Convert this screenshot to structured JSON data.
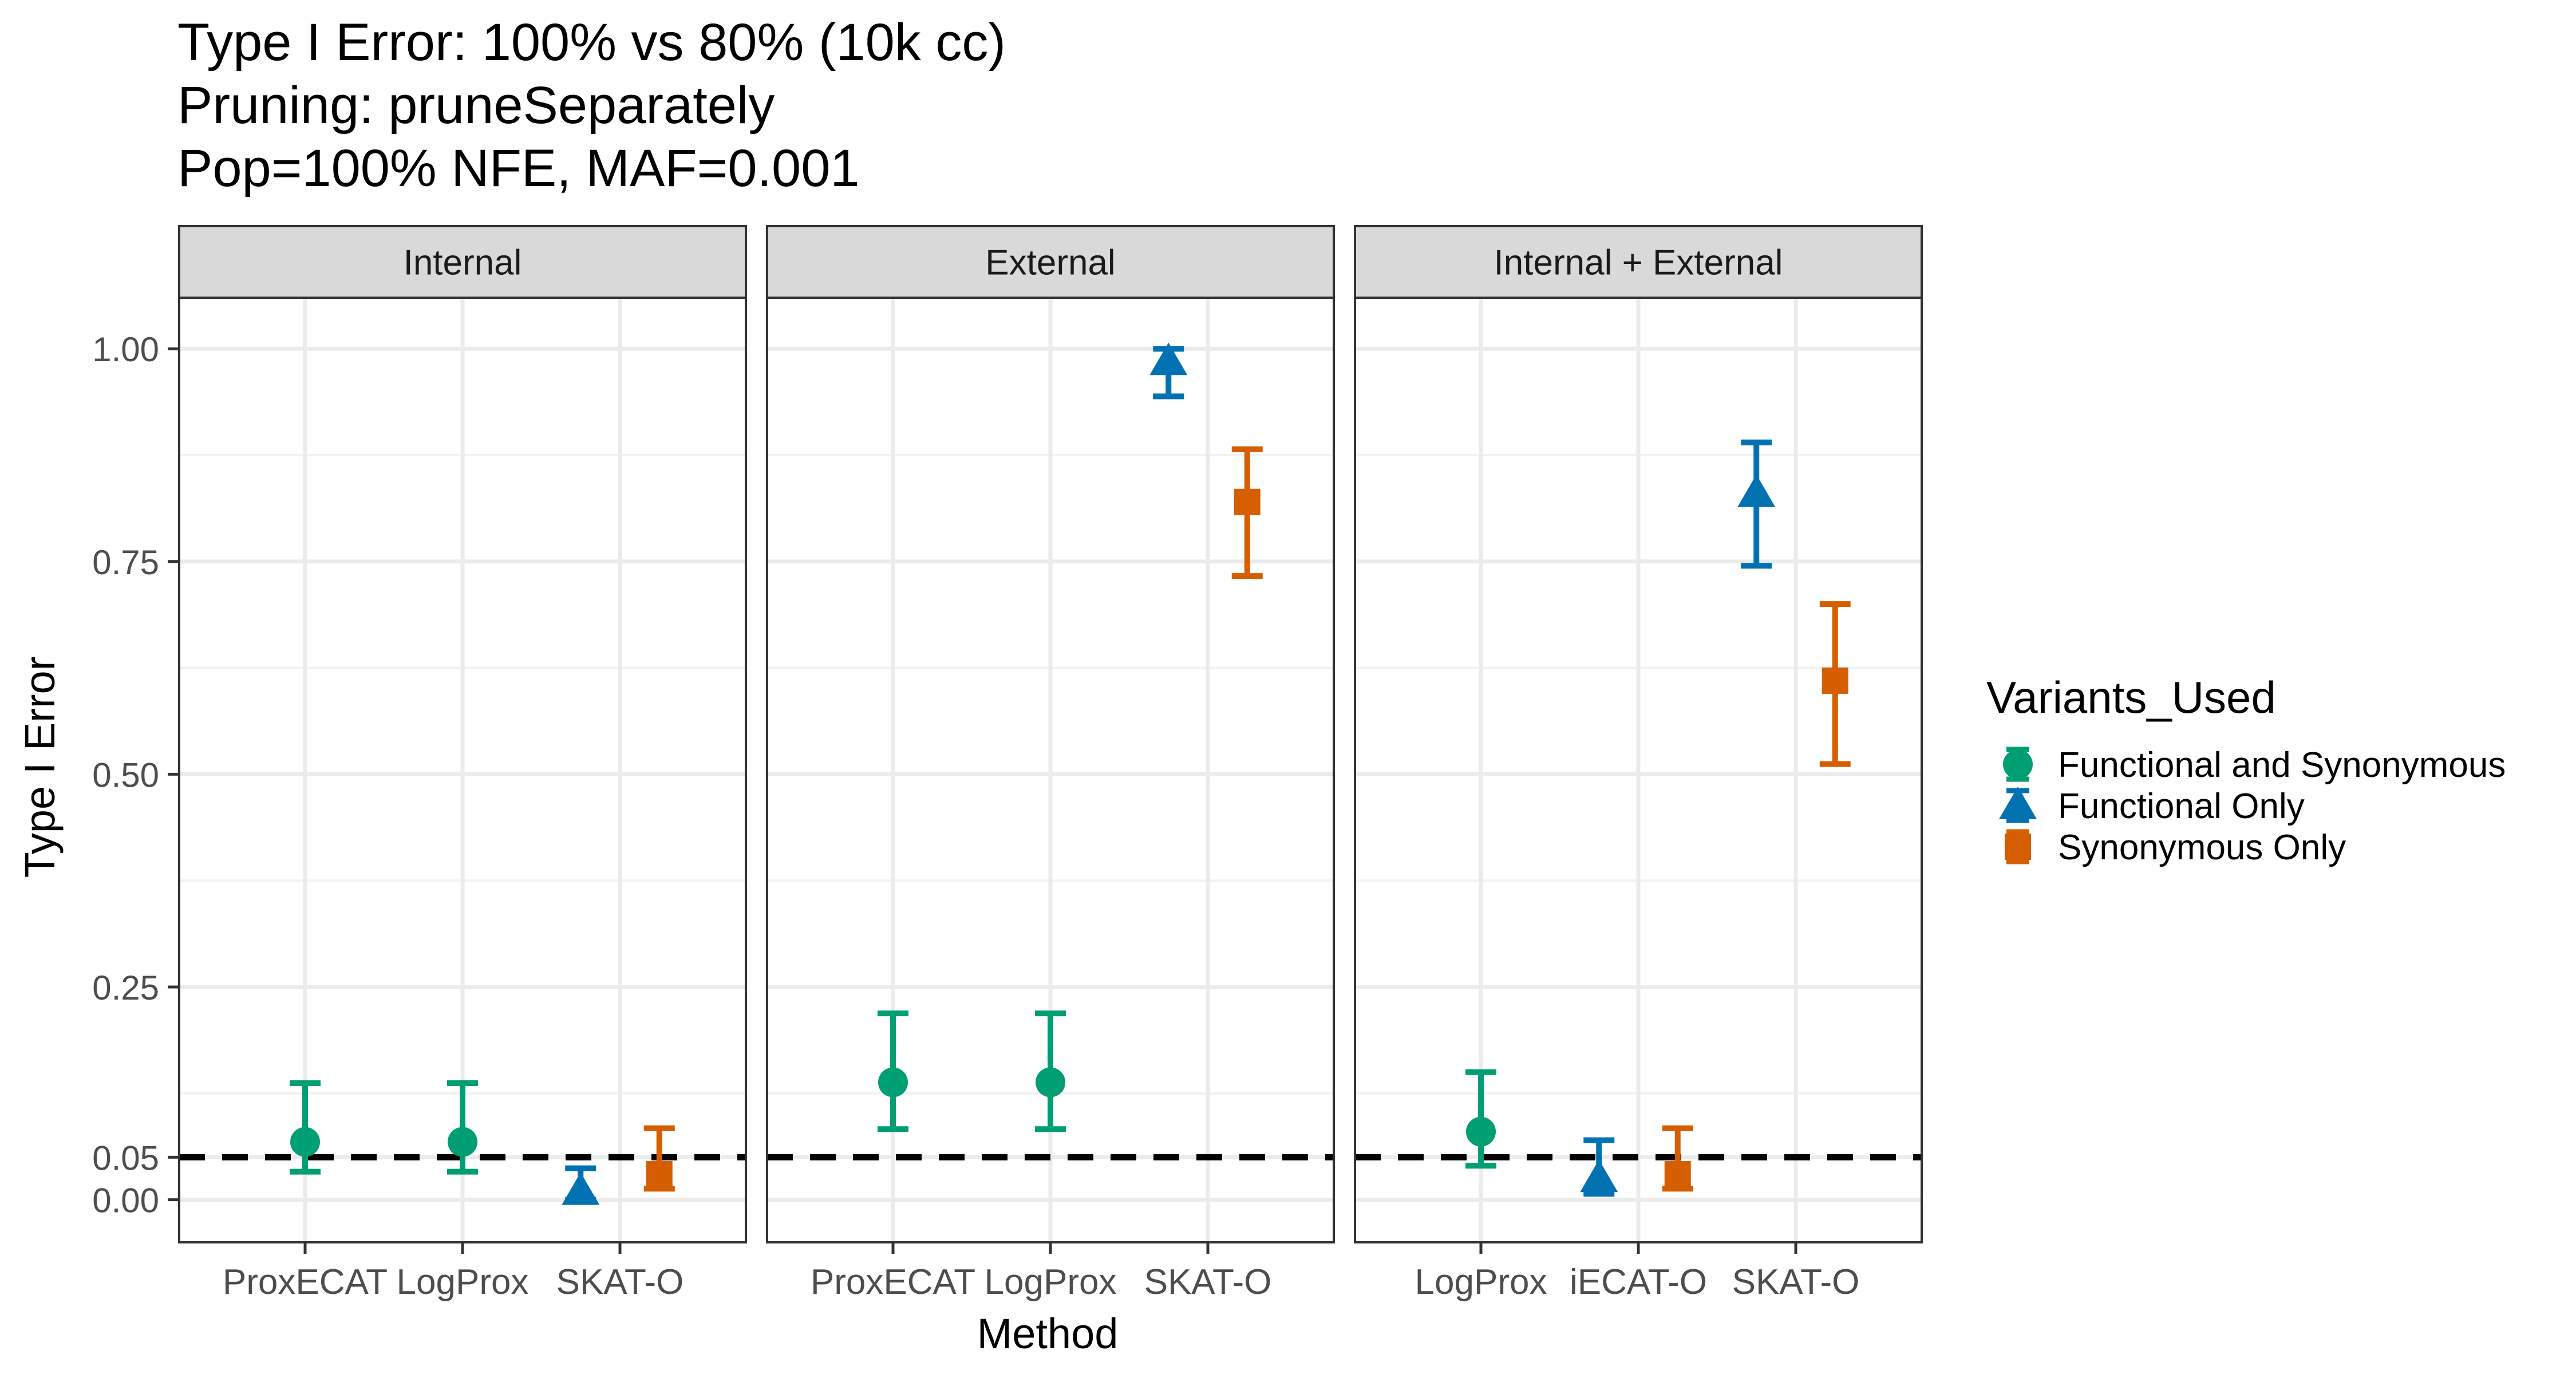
{
  "chart_data": {
    "type": "scatter",
    "title_lines": [
      "Type I Error: 100% vs 80% (10k cc)",
      "Pruning: pruneSeparately",
      "Pop=100% NFE, MAF=0.001"
    ],
    "xlabel": "Method",
    "ylabel": "Type I Error",
    "ylim": [
      -0.05,
      1.06
    ],
    "y_ticks": [
      {
        "value": 0.0,
        "label": "0.00"
      },
      {
        "value": 0.05,
        "label": "0.05"
      },
      {
        "value": 0.25,
        "label": "0.25"
      },
      {
        "value": 0.5,
        "label": "0.50"
      },
      {
        "value": 0.75,
        "label": "0.75"
      },
      {
        "value": 1.0,
        "label": "1.00"
      }
    ],
    "y_minor_grid": [
      0.125,
      0.375,
      0.625,
      0.875
    ],
    "reference_line": 0.05,
    "grid": true,
    "legend": {
      "title": "Variants_Used",
      "position": "right",
      "items": [
        {
          "label": "Functional and Synonymous",
          "color": "#009E73",
          "shape": "circle"
        },
        {
          "label": "Functional Only",
          "color": "#0072B2",
          "shape": "triangle"
        },
        {
          "label": "Synonymous Only",
          "color": "#D55E00",
          "shape": "square"
        }
      ]
    },
    "panels": [
      {
        "title": "Internal",
        "categories": [
          "ProxECAT",
          "LogProx",
          "SKAT-O"
        ],
        "points": [
          {
            "category": "ProxECAT",
            "group": "Functional and Synonymous",
            "offset": 0,
            "y": 0.068,
            "lo": 0.033,
            "hi": 0.137
          },
          {
            "category": "LogProx",
            "group": "Functional and Synonymous",
            "offset": 0,
            "y": 0.068,
            "lo": 0.033,
            "hi": 0.137
          },
          {
            "category": "SKAT-O",
            "group": "Functional Only",
            "offset": -0.25,
            "y": 0.01,
            "lo": 0.0,
            "hi": 0.037
          },
          {
            "category": "SKAT-O",
            "group": "Synonymous Only",
            "offset": 0.25,
            "y": 0.03,
            "lo": 0.013,
            "hi": 0.084
          }
        ]
      },
      {
        "title": "External",
        "categories": [
          "ProxECAT",
          "LogProx",
          "SKAT-O"
        ],
        "points": [
          {
            "category": "ProxECAT",
            "group": "Functional and Synonymous",
            "offset": 0,
            "y": 0.138,
            "lo": 0.083,
            "hi": 0.219
          },
          {
            "category": "LogProx",
            "group": "Functional and Synonymous",
            "offset": 0,
            "y": 0.138,
            "lo": 0.083,
            "hi": 0.219
          },
          {
            "category": "SKAT-O",
            "group": "Functional Only",
            "offset": -0.25,
            "y": 0.985,
            "lo": 0.944,
            "hi": 1.0
          },
          {
            "category": "SKAT-O",
            "group": "Synonymous Only",
            "offset": 0.25,
            "y": 0.82,
            "lo": 0.733,
            "hi": 0.882
          }
        ]
      },
      {
        "title": "Internal + External",
        "categories": [
          "LogProx",
          "iECAT-O",
          "SKAT-O"
        ],
        "points": [
          {
            "category": "LogProx",
            "group": "Functional and Synonymous",
            "offset": 0,
            "y": 0.08,
            "lo": 0.04,
            "hi": 0.15
          },
          {
            "category": "iECAT-O",
            "group": "Functional Only",
            "offset": -0.25,
            "y": 0.025,
            "lo": 0.007,
            "hi": 0.07
          },
          {
            "category": "iECAT-O",
            "group": "Synonymous Only",
            "offset": 0.25,
            "y": 0.03,
            "lo": 0.013,
            "hi": 0.084
          },
          {
            "category": "SKAT-O",
            "group": "Functional Only",
            "offset": -0.25,
            "y": 0.83,
            "lo": 0.745,
            "hi": 0.89
          },
          {
            "category": "SKAT-O",
            "group": "Synonymous Only",
            "offset": 0.25,
            "y": 0.61,
            "lo": 0.512,
            "hi": 0.7
          }
        ]
      }
    ]
  }
}
